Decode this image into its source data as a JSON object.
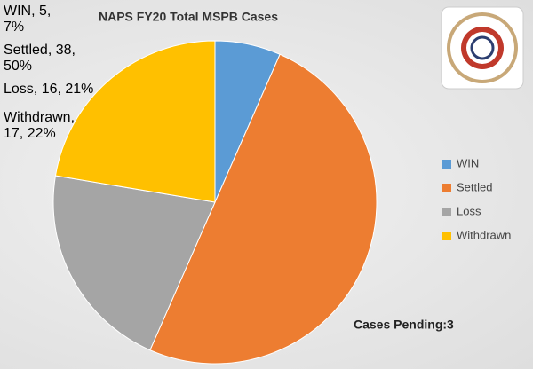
{
  "chart_data": {
    "type": "pie",
    "title": "NAPS FY20 Total MSPB Cases",
    "categories": [
      "WIN",
      "Settled",
      "Loss",
      "Withdrawn"
    ],
    "values": [
      5,
      38,
      16,
      17
    ],
    "value_labels": [
      "WIN, 5, 7%",
      "Settled, 38, 50%",
      "Loss, 16, 21%",
      "Withdrawn, 17, 22%"
    ],
    "colors": [
      "#5b9bd5",
      "#ed7d31",
      "#a5a5a5",
      "#ffc000"
    ],
    "legend": "right",
    "annotation": "Cases Pending:3"
  }
}
